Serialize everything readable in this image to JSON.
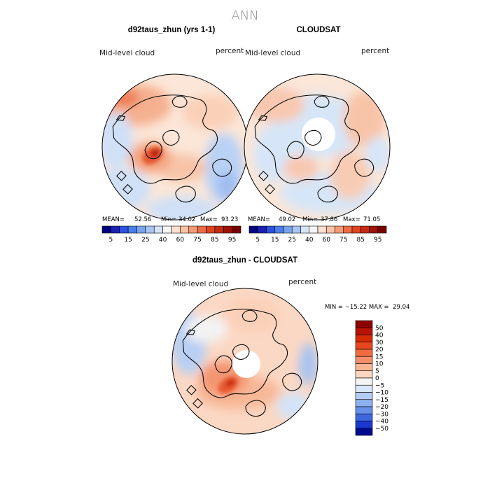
{
  "figure": {
    "season": "ANN",
    "model_title": "d92taus_zhun (yrs 1-1)",
    "obs_title": "CLOUDSAT",
    "diff_title": "d92taus_zhun - CLOUDSAT"
  },
  "panels": {
    "model": {
      "variable": "Mid-level cloud",
      "units": "percent",
      "mean_label": "MEAN=",
      "mean": "52.56",
      "min_label": "Min=",
      "min": "34.02",
      "max_label": "Max=",
      "max": "93.23"
    },
    "obs": {
      "variable": "Mid-level cloud",
      "units": "percent",
      "mean_label": "MEAN=",
      "mean": "49.02",
      "min_label": "Min=",
      "min": "37.86",
      "max_label": "Max=",
      "max": "71.05"
    },
    "diff": {
      "variable": "Mid-level cloud",
      "units": "percent",
      "range_text": "MIN = −15.22 MAX =  29.04"
    }
  },
  "chart_data": [
    {
      "type": "heatmap",
      "projection": "north-polar-stereographic",
      "title": "d92taus_zhun (yrs 1-1)",
      "variable": "Mid-level cloud",
      "units": "percent",
      "stats": {
        "mean": 52.56,
        "min": 34.02,
        "max": 93.23
      },
      "colorbar_levels": [
        5,
        10,
        15,
        20,
        25,
        30,
        40,
        50,
        60,
        70,
        75,
        80,
        85,
        90,
        95
      ],
      "colorbar_labels": [
        "5",
        "15",
        "25",
        "40",
        "60",
        "75",
        "85",
        "95"
      ],
      "colorbar_colors": [
        "#000080",
        "#1a20b3",
        "#2d52e0",
        "#4c7de8",
        "#7aa3ee",
        "#a8c6f2",
        "#d6e6f8",
        "#f5f5f5",
        "#fce0d0",
        "#fbc2a4",
        "#f59b76",
        "#ee6b46",
        "#e0441f",
        "#c52a10",
        "#9e1205",
        "#7a0000"
      ]
    },
    {
      "type": "heatmap",
      "projection": "north-polar-stereographic",
      "title": "CLOUDSAT",
      "variable": "Mid-level cloud",
      "units": "percent",
      "stats": {
        "mean": 49.02,
        "min": 37.86,
        "max": 71.05
      },
      "colorbar_levels": [
        5,
        10,
        15,
        20,
        25,
        30,
        40,
        50,
        60,
        70,
        75,
        80,
        85,
        90,
        95
      ],
      "colorbar_labels": [
        "5",
        "15",
        "25",
        "40",
        "60",
        "75",
        "85",
        "95"
      ],
      "colorbar_colors": [
        "#000080",
        "#1a20b3",
        "#2d52e0",
        "#4c7de8",
        "#7aa3ee",
        "#a8c6f2",
        "#d6e6f8",
        "#f5f5f5",
        "#fce0d0",
        "#fbc2a4",
        "#f59b76",
        "#ee6b46",
        "#e0441f",
        "#c52a10",
        "#9e1205",
        "#7a0000"
      ]
    },
    {
      "type": "heatmap",
      "projection": "north-polar-stereographic",
      "title": "d92taus_zhun - CLOUDSAT",
      "variable": "Mid-level cloud",
      "units": "percent",
      "stats": {
        "min": -15.22,
        "max": 29.04
      },
      "colorbar_levels": [
        50,
        40,
        30,
        20,
        15,
        10,
        5,
        0,
        -5,
        -10,
        -15,
        -20,
        -30,
        -40,
        -50
      ],
      "colorbar_labels": [
        "50",
        "40",
        "30",
        "20",
        "15",
        "10",
        "5",
        "0",
        "−5",
        "−10",
        "−15",
        "−20",
        "−30",
        "−40",
        "−50"
      ],
      "colorbar_colors": [
        "#8c0000",
        "#b81200",
        "#d62a05",
        "#e8461e",
        "#f06a40",
        "#f58e6a",
        "#f9b493",
        "#fcd6c0",
        "#f4f4f4",
        "#d8e6f8",
        "#b4cdf3",
        "#8eb0ee",
        "#6890e8",
        "#3f66e0",
        "#1b38d2",
        "#000a8c"
      ]
    }
  ]
}
